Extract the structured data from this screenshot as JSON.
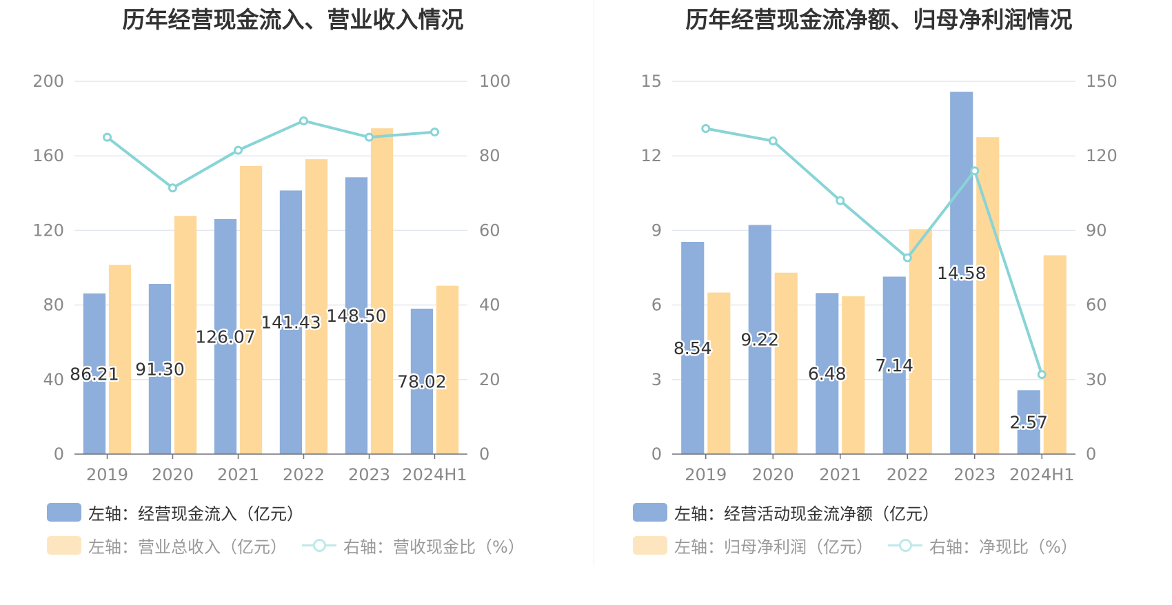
{
  "charts": [
    {
      "title": "历年经营现金流入、营业收入情况",
      "legend": [
        {
          "label": "左轴：经营现金流入（亿元）",
          "kind": "bar",
          "color": "#8eaedb",
          "text_color": "#333333"
        },
        {
          "label": "左轴：营业总收入（亿元）",
          "kind": "bar",
          "color": "#fde6bf",
          "text_color": "#999999"
        },
        {
          "label": "右轴：营收现金比（%）",
          "kind": "line",
          "color": "#bfe9ea",
          "text_color": "#999999"
        }
      ]
    },
    {
      "title": "历年经营现金流净额、归母净利润情况",
      "legend": [
        {
          "label": "左轴：经营活动现金流净额（亿元）",
          "kind": "bar",
          "color": "#8eaedb",
          "text_color": "#333333"
        },
        {
          "label": "左轴：归母净利润（亿元）",
          "kind": "bar",
          "color": "#fde6bf",
          "text_color": "#999999"
        },
        {
          "label": "右轴：净现比（%）",
          "kind": "line",
          "color": "#bfe9ea",
          "text_color": "#999999"
        }
      ]
    }
  ],
  "chart_data": [
    {
      "type": "bar",
      "title": "历年经营现金流入、营业收入情况",
      "categories": [
        "2019",
        "2020",
        "2021",
        "2022",
        "2023",
        "2024H1"
      ],
      "left_axis": {
        "ylim": [
          0,
          200
        ],
        "ticks": [
          "0",
          "40",
          "80",
          "120",
          "160",
          "200"
        ]
      },
      "right_axis": {
        "ylim": [
          0,
          100
        ],
        "ticks": [
          "0",
          "20",
          "40",
          "60",
          "80",
          "100"
        ]
      },
      "grid": true,
      "series": [
        {
          "name": "左轴：经营现金流入（亿元）",
          "axis": "left",
          "type": "bar",
          "color": "#8eaedb",
          "values": [
            86.21,
            91.3,
            126.07,
            141.43,
            148.5,
            78.02
          ],
          "labels": [
            "86.21",
            "91.30",
            "126.07",
            "141.43",
            "148.50",
            "78.02"
          ]
        },
        {
          "name": "左轴：营业总收入（亿元）",
          "axis": "left",
          "type": "bar",
          "color": "#fed899",
          "values": [
            101.5,
            127.8,
            154.6,
            158.2,
            174.8,
            90.3
          ]
        },
        {
          "name": "右轴：营收现金比（%）",
          "axis": "right",
          "type": "line",
          "color": "#88d4d6",
          "values": [
            85,
            71.4,
            81.5,
            89.4,
            85,
            86.4
          ]
        }
      ]
    },
    {
      "type": "bar",
      "title": "历年经营现金流净额、归母净利润情况",
      "categories": [
        "2019",
        "2020",
        "2021",
        "2022",
        "2023",
        "2024H1"
      ],
      "left_axis": {
        "ylim": [
          0,
          15
        ],
        "ticks": [
          "0",
          "3",
          "6",
          "9",
          "12",
          "15"
        ]
      },
      "right_axis": {
        "ylim": [
          0,
          150
        ],
        "ticks": [
          "0",
          "30",
          "60",
          "90",
          "120",
          "150"
        ]
      },
      "grid": true,
      "series": [
        {
          "name": "左轴：经营活动现金流净额（亿元）",
          "axis": "left",
          "type": "bar",
          "color": "#8eaedb",
          "values": [
            8.54,
            9.22,
            6.48,
            7.14,
            14.58,
            2.57
          ],
          "labels": [
            "8.54",
            "9.22",
            "6.48",
            "7.14",
            "14.58",
            "2.57"
          ]
        },
        {
          "name": "左轴：归母净利润（亿元）",
          "axis": "left",
          "type": "bar",
          "color": "#fed899",
          "values": [
            6.5,
            7.3,
            6.35,
            9.05,
            12.75,
            8.0
          ]
        },
        {
          "name": "右轴：净现比（%）",
          "axis": "right",
          "type": "line",
          "color": "#88d4d6",
          "values": [
            131,
            126,
            102,
            79,
            114,
            32
          ]
        }
      ]
    }
  ]
}
